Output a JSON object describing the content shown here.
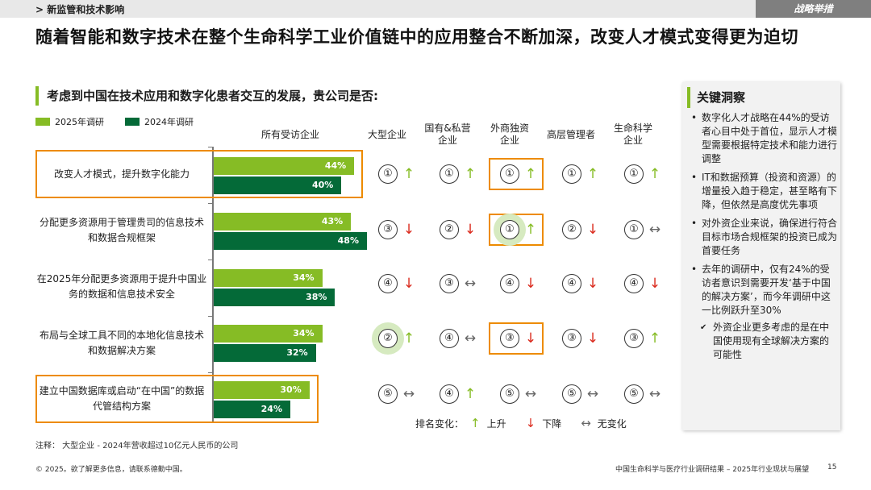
{
  "header": {
    "section": "> 新监管和技术影响",
    "tag": "战略举措"
  },
  "headline": "随着智能和数字技术在整个生命科学工业价值链中的应用整合不断加深，改变人才模式变得更为迫切",
  "question": "考虑到中国在技术应用和数字化患者交互的发展，贵公司是否:",
  "legend": {
    "y2025": "2025年调研",
    "y2024": "2024年调研"
  },
  "colors": {
    "green2025": "#86bc25",
    "green2024": "#046a38",
    "highlight": "#ed8b00",
    "down": "#da291c"
  },
  "columns": {
    "all": "所有受访企业",
    "large": "大型企业",
    "soe_line1": "国有&私营",
    "soe_line2": "企业",
    "foreign_line1": "外商独资",
    "foreign_line2": "企业",
    "senior": "高层管理者",
    "ls_line1": "生命科学",
    "ls_line2": "企业"
  },
  "rows": [
    {
      "label": "改变人才模式，提升数字化能力",
      "v2025_text": "44%",
      "v2024_text": "40%",
      "ranks": [
        {
          "n": "①",
          "dir": "up"
        },
        {
          "n": "①",
          "dir": "up"
        },
        {
          "n": "①",
          "dir": "up"
        },
        {
          "n": "①",
          "dir": "up"
        },
        {
          "n": "①",
          "dir": "up"
        }
      ]
    },
    {
      "label": "分配更多资源用于管理贵司的信息技术和数据合规框架",
      "v2025_text": "43%",
      "v2024_text": "48%",
      "ranks": [
        {
          "n": "③",
          "dir": "down"
        },
        {
          "n": "②",
          "dir": "down"
        },
        {
          "n": "①",
          "dir": "up"
        },
        {
          "n": "②",
          "dir": "down"
        },
        {
          "n": "①",
          "dir": "flat"
        }
      ]
    },
    {
      "label": "在2025年分配更多资源用于提升中国业务的数据和信息技术安全",
      "v2025_text": "34%",
      "v2024_text": "38%",
      "ranks": [
        {
          "n": "④",
          "dir": "down"
        },
        {
          "n": "③",
          "dir": "flat"
        },
        {
          "n": "④",
          "dir": "down"
        },
        {
          "n": "④",
          "dir": "down"
        },
        {
          "n": "④",
          "dir": "down"
        }
      ]
    },
    {
      "label": "布局与全球工具不同的本地化信息技术和数据解决方案",
      "v2025_text": "34%",
      "v2024_text": "32%",
      "ranks": [
        {
          "n": "②",
          "dir": "up"
        },
        {
          "n": "④",
          "dir": "flat"
        },
        {
          "n": "③",
          "dir": "down"
        },
        {
          "n": "③",
          "dir": "down"
        },
        {
          "n": "③",
          "dir": "up"
        }
      ]
    },
    {
      "label": "建立中国数据库或启动“在中国”的数据代管结构方案",
      "v2025_text": "30%",
      "v2024_text": "24%",
      "ranks": [
        {
          "n": "⑤",
          "dir": "flat"
        },
        {
          "n": "④",
          "dir": "up"
        },
        {
          "n": "⑤",
          "dir": "flat"
        },
        {
          "n": "⑤",
          "dir": "flat"
        },
        {
          "n": "⑤",
          "dir": "flat"
        }
      ]
    }
  ],
  "arrows": {
    "up": "↑",
    "down": "↓",
    "flat": "↔"
  },
  "rank_key": {
    "title": "排名变化：",
    "up": "上升",
    "down": "下降",
    "flat": "无变化"
  },
  "insights": {
    "title": "关键洞察",
    "items": [
      "数字化人才战略在44%的受访者心目中处于首位，显示人才模型需要根据特定技术和能力进行调整",
      "IT和数据预算（投资和资源）的增量投入趋于稳定，甚至略有下降，但依然是高度优先事项",
      "对外资企业来说，确保进行符合目标市场合规框架的投资已成为首要任务",
      "去年的调研中，仅有24%的受访者意识到需要开发‘基于中国的解决方案’，而今年调研中这一比例跃升至30%"
    ],
    "sub_item": "外资企业更多考虑的是在中国使用现有全球解决方案的可能性"
  },
  "note": "注释：  大型企业 - 2024年营收超过10亿元人民币的公司",
  "footer": {
    "left": "© 2025。欲了解更多信息，请联系德勤中国。",
    "right": "中国生命科学与医疗行业调研结果 – 2025年行业现状与展望",
    "page": "15"
  },
  "chart_data": {
    "type": "bar",
    "title": "考虑到中国在技术应用和数字化患者交互的发展，贵公司是否:",
    "categories": [
      "改变人才模式，提升数字化能力",
      "分配更多资源用于管理贵司的信息技术和数据合规框架",
      "在2025年分配更多资源用于提升中国业务的数据和信息技术安全",
      "布局与全球工具不同的本地化信息技术和数据解决方案",
      "建立中国数据库或启动“在中国”的数据代管结构方案"
    ],
    "series": [
      {
        "name": "2025年调研",
        "values": [
          44,
          43,
          34,
          34,
          30
        ]
      },
      {
        "name": "2024年调研",
        "values": [
          40,
          48,
          38,
          32,
          24
        ]
      }
    ],
    "orientation": "horizontal",
    "xlabel": "所有受访企业",
    "ylabel": "",
    "xlim": [
      0,
      48
    ]
  }
}
